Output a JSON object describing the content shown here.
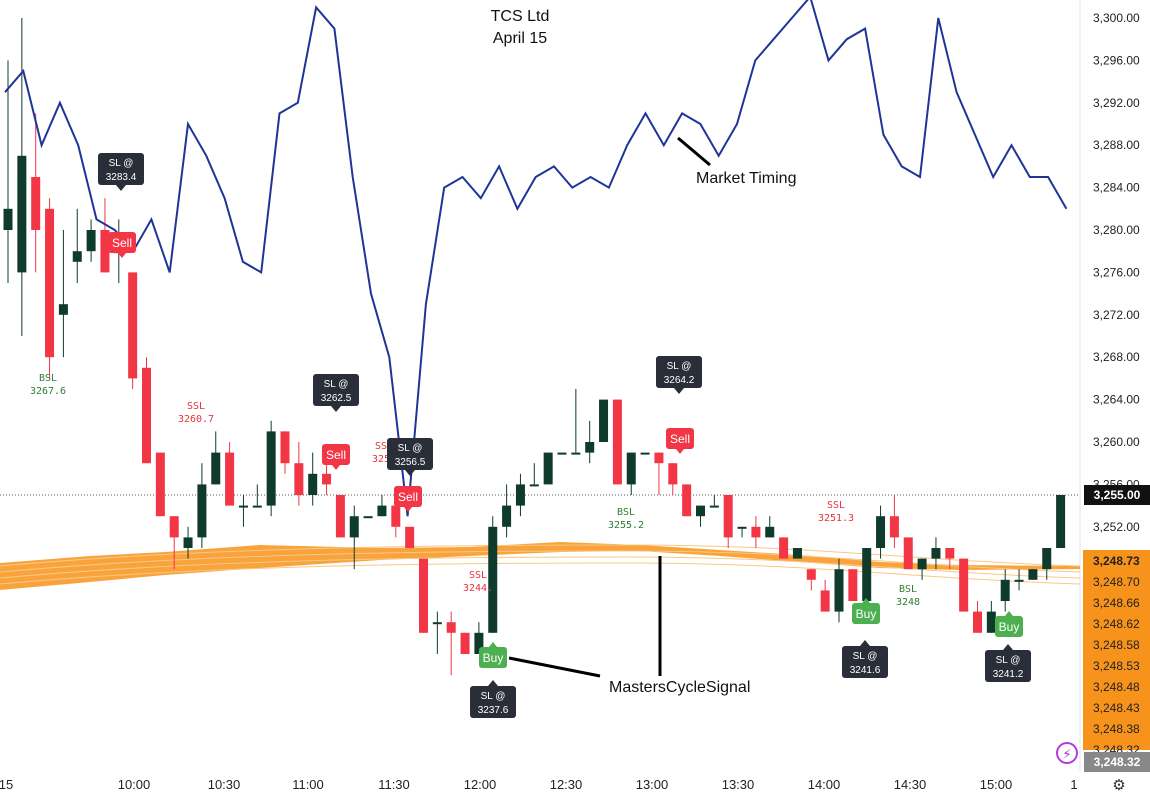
{
  "header": {
    "title": "TCS Ltd",
    "subtitle": "April 15"
  },
  "price_tags": {
    "last_price": "3,255.00",
    "ma_top": "3,248.73",
    "ma_bottom": "3,248.32"
  },
  "icons": {
    "bolt": "lightning-icon",
    "gear": "gear-icon"
  },
  "colors": {
    "bull": "#0f3b2c",
    "bear": "#f23645",
    "market_timing": "#1f3596",
    "ma_band": "#f7931a",
    "level_red": "#e8323c",
    "level_green": "#2e7d32",
    "buy": "#4caf50",
    "sell": "#f23645",
    "bubble": "#2a2e39"
  },
  "chart_data": {
    "type": "candlestick",
    "title": "TCS Ltd",
    "subtitle": "April 15",
    "y_axis": {
      "ticks": [
        "3,300.00",
        "3,296.00",
        "3,292.00",
        "3,288.00",
        "3,284.00",
        "3,280.00",
        "3,276.00",
        "3,272.00",
        "3,268.00",
        "3,264.00",
        "3,260.00",
        "3,256.00",
        "3,252.00"
      ],
      "ma_ticks": [
        "3,248.73",
        "3,248.70",
        "3,248.66",
        "3,248.62",
        "3,248.58",
        "3,248.53",
        "3,248.48",
        "3,248.43",
        "3,248.38",
        "3,248.32"
      ]
    },
    "x_axis": {
      "ticks": [
        "15",
        "10:00",
        "10:30",
        "11:00",
        "11:30",
        "12:00",
        "12:30",
        "13:00",
        "13:30",
        "14:00",
        "14:30",
        "15:00",
        "1"
      ]
    },
    "candles": [
      {
        "o": 3280,
        "h": 3296,
        "l": 3275,
        "c": 3282
      },
      {
        "o": 3276,
        "h": 3300,
        "l": 3270,
        "c": 3287
      },
      {
        "o": 3285,
        "h": 3291,
        "l": 3276,
        "c": 3280
      },
      {
        "o": 3282,
        "h": 3283,
        "l": 3266,
        "c": 3268
      },
      {
        "o": 3272,
        "h": 3280,
        "l": 3268,
        "c": 3273
      },
      {
        "o": 3277,
        "h": 3282,
        "l": 3275,
        "c": 3278
      },
      {
        "o": 3278,
        "h": 3281,
        "l": 3277,
        "c": 3280
      },
      {
        "o": 3280,
        "h": 3283,
        "l": 3276,
        "c": 3276
      },
      {
        "o": 3278,
        "h": 3281,
        "l": 3275,
        "c": 3278
      },
      {
        "o": 3276,
        "h": 3276,
        "l": 3265,
        "c": 3266
      },
      {
        "o": 3267,
        "h": 3268,
        "l": 3258,
        "c": 3258
      },
      {
        "o": 3259,
        "h": 3259,
        "l": 3253,
        "c": 3253
      },
      {
        "o": 3253,
        "h": 3253,
        "l": 3248,
        "c": 3251
      },
      {
        "o": 3250,
        "h": 3252,
        "l": 3249,
        "c": 3251
      },
      {
        "o": 3251,
        "h": 3258,
        "l": 3250,
        "c": 3256
      },
      {
        "o": 3256,
        "h": 3261,
        "l": 3256,
        "c": 3259
      },
      {
        "o": 3259,
        "h": 3260,
        "l": 3254,
        "c": 3254
      },
      {
        "o": 3254,
        "h": 3255,
        "l": 3252,
        "c": 3254
      },
      {
        "o": 3254,
        "h": 3256,
        "l": 3254,
        "c": 3254
      },
      {
        "o": 3254,
        "h": 3262,
        "l": 3253,
        "c": 3261
      },
      {
        "o": 3261,
        "h": 3261,
        "l": 3257,
        "c": 3258
      },
      {
        "o": 3258,
        "h": 3260,
        "l": 3254,
        "c": 3255
      },
      {
        "o": 3255,
        "h": 3259,
        "l": 3254,
        "c": 3257
      },
      {
        "o": 3257,
        "h": 3259,
        "l": 3255,
        "c": 3256
      },
      {
        "o": 3255,
        "h": 3255,
        "l": 3251,
        "c": 3251
      },
      {
        "o": 3251,
        "h": 3254,
        "l": 3248,
        "c": 3253
      },
      {
        "o": 3253,
        "h": 3253,
        "l": 3253,
        "c": 3253
      },
      {
        "o": 3253,
        "h": 3255,
        "l": 3253,
        "c": 3254
      },
      {
        "o": 3254,
        "h": 3254,
        "l": 3251,
        "c": 3252
      },
      {
        "o": 3252,
        "h": 3252,
        "l": 3250,
        "c": 3250
      },
      {
        "o": 3249,
        "h": 3249,
        "l": 3242,
        "c": 3242
      },
      {
        "o": 3243,
        "h": 3244,
        "l": 3240,
        "c": 3243
      },
      {
        "o": 3243,
        "h": 3244,
        "l": 3238,
        "c": 3242
      },
      {
        "o": 3242,
        "h": 3242,
        "l": 3240,
        "c": 3240
      },
      {
        "o": 3240,
        "h": 3243,
        "l": 3240,
        "c": 3242
      },
      {
        "o": 3242,
        "h": 3253,
        "l": 3242,
        "c": 3252
      },
      {
        "o": 3252,
        "h": 3256,
        "l": 3251,
        "c": 3254
      },
      {
        "o": 3254,
        "h": 3257,
        "l": 3253,
        "c": 3256
      },
      {
        "o": 3256,
        "h": 3258,
        "l": 3256,
        "c": 3256
      },
      {
        "o": 3256,
        "h": 3259,
        "l": 3256,
        "c": 3259
      },
      {
        "o": 3259,
        "h": 3259,
        "l": 3259,
        "c": 3259
      },
      {
        "o": 3259,
        "h": 3265,
        "l": 3259,
        "c": 3259
      },
      {
        "o": 3259,
        "h": 3262,
        "l": 3258,
        "c": 3260
      },
      {
        "o": 3260,
        "h": 3264,
        "l": 3260,
        "c": 3264
      },
      {
        "o": 3264,
        "h": 3264,
        "l": 3256,
        "c": 3256
      },
      {
        "o": 3256,
        "h": 3259,
        "l": 3255,
        "c": 3259
      },
      {
        "o": 3259,
        "h": 3259,
        "l": 3259,
        "c": 3259
      },
      {
        "o": 3259,
        "h": 3259,
        "l": 3255,
        "c": 3258
      },
      {
        "o": 3258,
        "h": 3258,
        "l": 3255,
        "c": 3256
      },
      {
        "o": 3256,
        "h": 3256,
        "l": 3253,
        "c": 3253
      },
      {
        "o": 3253,
        "h": 3254,
        "l": 3252,
        "c": 3254
      },
      {
        "o": 3254,
        "h": 3255,
        "l": 3254,
        "c": 3254
      },
      {
        "o": 3255,
        "h": 3255,
        "l": 3250,
        "c": 3251
      },
      {
        "o": 3252,
        "h": 3252,
        "l": 3251,
        "c": 3252
      },
      {
        "o": 3252,
        "h": 3253,
        "l": 3250,
        "c": 3251
      },
      {
        "o": 3251,
        "h": 3253,
        "l": 3251,
        "c": 3252
      },
      {
        "o": 3251,
        "h": 3251,
        "l": 3249,
        "c": 3249
      },
      {
        "o": 3249,
        "h": 3250,
        "l": 3249,
        "c": 3250
      },
      {
        "o": 3248,
        "h": 3248,
        "l": 3246,
        "c": 3247
      },
      {
        "o": 3246,
        "h": 3247,
        "l": 3244,
        "c": 3244
      },
      {
        "o": 3244,
        "h": 3249,
        "l": 3243,
        "c": 3248
      },
      {
        "o": 3248,
        "h": 3248,
        "l": 3245,
        "c": 3245
      },
      {
        "o": 3245,
        "h": 3250,
        "l": 3243,
        "c": 3250
      },
      {
        "o": 3250,
        "h": 3254,
        "l": 3249,
        "c": 3253
      },
      {
        "o": 3253,
        "h": 3255,
        "l": 3250,
        "c": 3251
      },
      {
        "o": 3251,
        "h": 3251,
        "l": 3248,
        "c": 3248
      },
      {
        "o": 3248,
        "h": 3249,
        "l": 3247,
        "c": 3249
      },
      {
        "o": 3249,
        "h": 3251,
        "l": 3248,
        "c": 3250
      },
      {
        "o": 3250,
        "h": 3250,
        "l": 3248,
        "c": 3249
      },
      {
        "o": 3249,
        "h": 3249,
        "l": 3244,
        "c": 3244
      },
      {
        "o": 3244,
        "h": 3245,
        "l": 3242,
        "c": 3242
      },
      {
        "o": 3242,
        "h": 3245,
        "l": 3242,
        "c": 3244
      },
      {
        "o": 3245,
        "h": 3248,
        "l": 3244,
        "c": 3247
      },
      {
        "o": 3247,
        "h": 3248,
        "l": 3246,
        "c": 3247
      },
      {
        "o": 3247,
        "h": 3248,
        "l": 3247,
        "c": 3248
      },
      {
        "o": 3248,
        "h": 3250,
        "l": 3247,
        "c": 3250
      },
      {
        "o": 3250,
        "h": 3255,
        "l": 3250,
        "c": 3255
      }
    ],
    "market_timing": [
      3293,
      3295,
      3288,
      3292,
      3288,
      3281,
      3280,
      3278,
      3281,
      3276,
      3290,
      3287,
      3283,
      3277,
      3276,
      3291,
      3292,
      3301,
      3299,
      3285,
      3274,
      3268,
      3253,
      3273,
      3284,
      3285,
      3283,
      3286,
      3282,
      3285,
      3286,
      3284,
      3285,
      3284,
      3288,
      3291,
      3288,
      3291,
      3290,
      3287,
      3290,
      3296,
      3298,
      3300,
      3302,
      3296,
      3298,
      3299,
      3289,
      3286,
      3285,
      3300,
      3293,
      3289,
      3285,
      3288,
      3285,
      3285,
      3282
    ],
    "levels": [
      {
        "tag": "BSL",
        "value": "3267.6",
        "color": "green"
      },
      {
        "tag": "SSL",
        "value": "3260.7",
        "color": "red"
      },
      {
        "tag": "SSL",
        "value": "3256",
        "color": "red"
      },
      {
        "tag": "SSL",
        "value": "3244.",
        "color": "red"
      },
      {
        "tag": "BSL",
        "value": "3255.2",
        "color": "green"
      },
      {
        "tag": "SSL",
        "value": "3251.3",
        "color": "red"
      },
      {
        "tag": "BSL",
        "value": "3248",
        "color": "green"
      }
    ],
    "stop_losses": [
      {
        "label": "SL @",
        "value": "3283.4"
      },
      {
        "label": "SL @",
        "value": "3262.5"
      },
      {
        "label": "SL @",
        "value": "3256.5"
      },
      {
        "label": "SL @",
        "value": "3264.2"
      },
      {
        "label": "SL @",
        "value": "3237.6"
      },
      {
        "label": "SL @",
        "value": "3241.6"
      },
      {
        "label": "SL @",
        "value": "3241.2"
      }
    ],
    "signals": [
      "Sell",
      "Sell",
      "Sell",
      "Sell",
      "Buy",
      "Buy",
      "Buy"
    ],
    "annotations": [
      "Market Timing",
      "MastersCycleSignal"
    ]
  }
}
